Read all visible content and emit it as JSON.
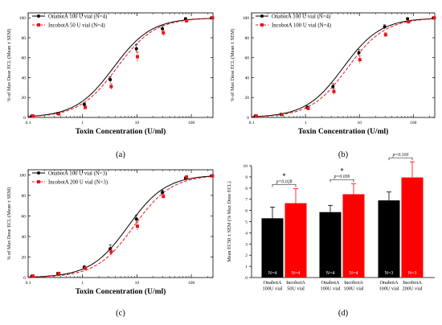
{
  "chart_data": [
    {
      "type": "line",
      "panel_label": "(a)",
      "xlabel": "Toxin Concentration (U/ml)",
      "ylabel": "% of Max Dose ECL (Mean ± SEM)",
      "xscale": "log",
      "xlim": [
        0.1,
        250
      ],
      "ylim": [
        0,
        105
      ],
      "x_ticks": [
        "0.1",
        "1",
        "10",
        "100"
      ],
      "y_ticks": [
        "0",
        "20",
        "40",
        "60",
        "80",
        "100"
      ],
      "legend_position": "top-left",
      "ec50": [
        3.7,
        4.3
      ],
      "series": [
        {
          "name": "OnabotA 100 U vial (N=4)",
          "color": "#000000",
          "marker": "circle",
          "line": "solid",
          "x": [
            0.12,
            0.36,
            1.1,
            3.3,
            10,
            30,
            80,
            240
          ],
          "y": [
            1.5,
            4,
            13,
            38,
            69,
            89,
            99,
            100
          ],
          "sem": [
            0.5,
            1,
            1.5,
            3,
            4,
            3,
            1,
            0
          ]
        },
        {
          "name": "IncobotA 50 U vial (N=4)",
          "color": "#e8141b",
          "marker": "square",
          "line": "dashed",
          "x": [
            0.12,
            0.36,
            1.1,
            3.3,
            10,
            30,
            80,
            240
          ],
          "y": [
            1.5,
            3.5,
            10,
            31,
            61,
            85,
            97,
            100
          ],
          "sem": [
            0.5,
            1,
            1.5,
            3,
            5,
            3,
            1,
            0
          ]
        }
      ]
    },
    {
      "type": "line",
      "panel_label": "(b)",
      "xlabel": "Toxin Concentration (U/ml)",
      "ylabel": "% of Max Dose ECL (Mean ± SEM)",
      "xscale": "log",
      "xlim": [
        0.1,
        250
      ],
      "ylim": [
        0,
        105
      ],
      "x_ticks": [
        "0.1",
        "1",
        "10",
        "100"
      ],
      "y_ticks": [
        "0",
        "20",
        "40",
        "60",
        "80",
        "100"
      ],
      "legend_position": "top-left",
      "ec50": [
        5.0,
        6.1
      ],
      "series": [
        {
          "name": "OnabotA 100 U vial (N=4)",
          "color": "#000000",
          "marker": "circle",
          "line": "solid",
          "x": [
            0.12,
            0.36,
            1.1,
            3.3,
            10,
            30,
            80,
            240
          ],
          "y": [
            1.5,
            3,
            10,
            31,
            65,
            91,
            99,
            100
          ],
          "sem": [
            0.5,
            1,
            1.5,
            3,
            3,
            2,
            1,
            0
          ]
        },
        {
          "name": "IncobotA 100 U vial (N=4)",
          "color": "#e8141b",
          "marker": "square",
          "line": "dashed",
          "x": [
            0.12,
            0.36,
            1.1,
            3.3,
            10,
            30,
            80,
            240
          ],
          "y": [
            1.5,
            3,
            9,
            26,
            58,
            83,
            96,
            100
          ],
          "sem": [
            0.5,
            1,
            1.5,
            3,
            4,
            2,
            1,
            0
          ]
        }
      ]
    },
    {
      "type": "line",
      "panel_label": "(c)",
      "xlabel": "Toxin Concentration (U/ml)",
      "ylabel": "% of Max Dose ECL (Mean ± SEM)",
      "xscale": "log",
      "xlim": [
        0.1,
        250
      ],
      "ylim": [
        0,
        105
      ],
      "x_ticks": [
        "0.1",
        "1",
        "10",
        "100"
      ],
      "y_ticks": [
        "0",
        "20",
        "40",
        "60",
        "80",
        "100"
      ],
      "legend_position": "top-left",
      "ec50": [
        6.9,
        8.8
      ],
      "series": [
        {
          "name": "OnabotA 100 U vial (N=3)",
          "color": "#000000",
          "marker": "circle",
          "line": "solid",
          "x": [
            0.12,
            0.36,
            1.1,
            3.3,
            10,
            30,
            80,
            240
          ],
          "y": [
            1.5,
            4,
            10,
            28,
            57,
            83,
            97,
            99
          ],
          "sem": [
            0.5,
            1,
            1.5,
            4,
            4,
            2,
            1,
            0
          ]
        },
        {
          "name": "IncobotA 200 U vial (N=3)",
          "color": "#e8141b",
          "marker": "square",
          "line": "dashed",
          "x": [
            0.12,
            0.36,
            1.1,
            3.3,
            10,
            30,
            80,
            240
          ],
          "y": [
            1.5,
            4,
            9,
            25,
            50,
            79,
            98,
            99
          ],
          "sem": [
            0.5,
            1,
            1.5,
            3,
            4,
            2,
            1,
            0
          ]
        }
      ]
    },
    {
      "type": "bar",
      "panel_label": "(d)",
      "ylabel": "Mean EC50 ± SEM (% Max Dose ECL)",
      "ylim": [
        0,
        10
      ],
      "y_ticks": [
        "0",
        "1",
        "2",
        "3",
        "4",
        "5",
        "6",
        "7",
        "8",
        "9",
        "10"
      ],
      "categories": [
        [
          "OnabotA",
          "100U vial"
        ],
        [
          "IncobotA",
          "50U vial"
        ],
        [
          "OnabotA",
          "100U vial"
        ],
        [
          "IncobotA",
          "100U vial"
        ],
        [
          "OnabotA",
          "100U vial"
        ],
        [
          "IncobotA",
          "200U vial"
        ]
      ],
      "values": [
        5.3,
        6.65,
        5.85,
        7.45,
        6.9,
        8.95
      ],
      "sem": [
        1.0,
        1.3,
        0.6,
        0.95,
        0.75,
        1.4
      ],
      "colors": [
        "#000000",
        "#ff0000",
        "#000000",
        "#ff0000",
        "#000000",
        "#ff0000"
      ],
      "n_labels": [
        "N=4",
        "N=4",
        "N=4",
        "N=4",
        "N=3",
        "N=3"
      ],
      "comparisons": [
        {
          "pair": [
            0,
            1
          ],
          "p_text": "p=0.028",
          "star": "*"
        },
        {
          "pair": [
            2,
            3
          ],
          "p_text": "p=0.036",
          "star": "*"
        },
        {
          "pair": [
            4,
            5
          ],
          "p_text": "p=0.103",
          "star": ""
        }
      ]
    }
  ]
}
